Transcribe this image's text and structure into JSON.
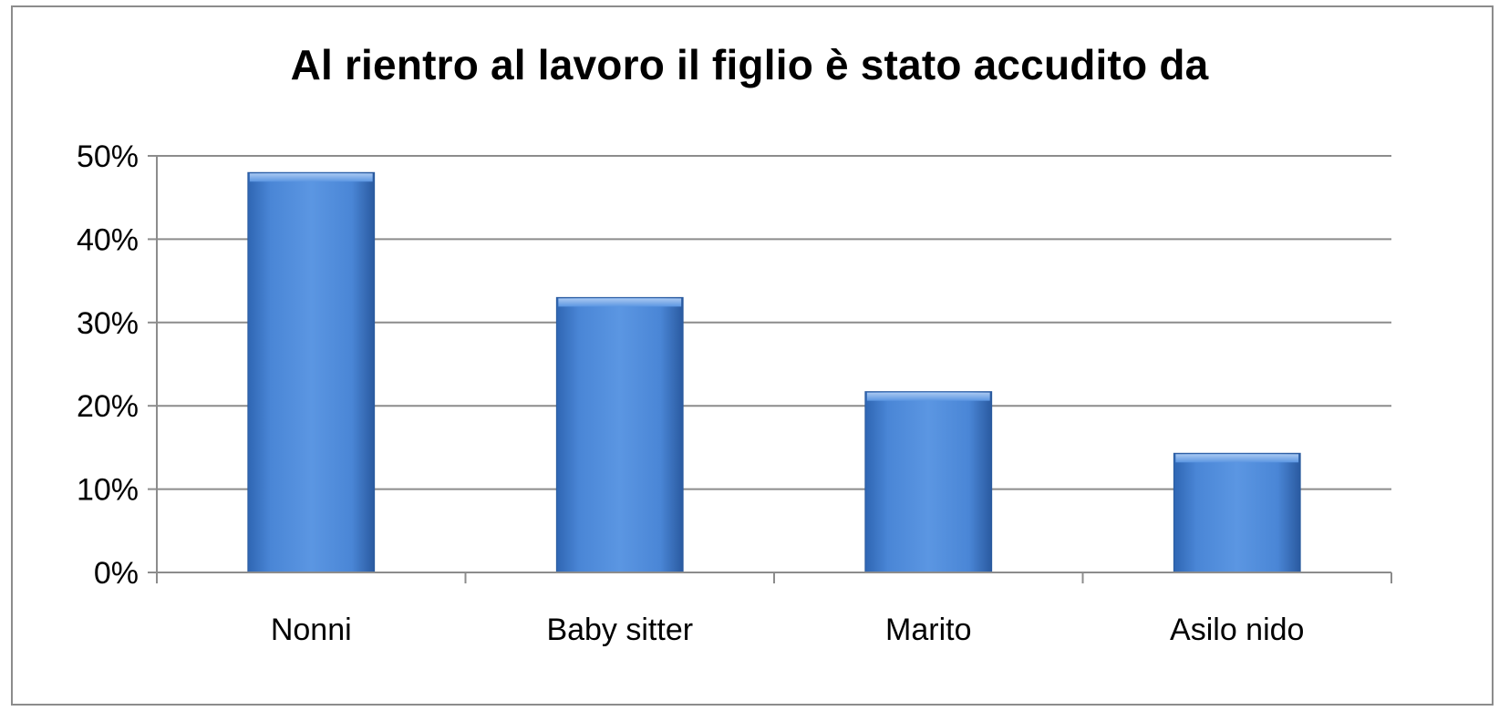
{
  "chart_data": {
    "type": "bar",
    "title": "Al rientro al lavoro il figlio è stato accudito da",
    "xlabel": "",
    "ylabel": "",
    "categories": [
      "Nonni",
      "Baby sitter",
      "Marito",
      "Asilo nido"
    ],
    "values": [
      48,
      33,
      21.7,
      14.3
    ],
    "unit": "%",
    "ylim": [
      0,
      50
    ],
    "yticks": [
      0,
      10,
      20,
      30,
      40,
      50
    ],
    "ytick_labels": [
      "0%",
      "10%",
      "20%",
      "30%",
      "40%",
      "50%"
    ],
    "grid": true,
    "legend": "none",
    "colors": {
      "bar": "#4a86d6",
      "bar_edge": "#2a5a9e",
      "grid": "#8c8c8c",
      "frame": "#8c8c8c"
    }
  }
}
